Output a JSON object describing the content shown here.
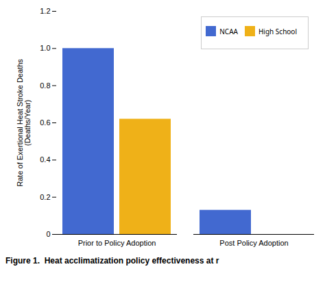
{
  "chart_data": {
    "type": "bar",
    "categories": [
      "Prior to Policy Adoption",
      "Post Policy Adoption"
    ],
    "series": [
      {
        "name": "NCAA",
        "values": [
          1.0,
          0.13
        ]
      },
      {
        "name": "High School",
        "values": [
          0.62,
          0.0
        ]
      }
    ],
    "ylabel": "Rate of Exertional Heat Stroke Deaths\n(Deaths/Year)",
    "caption": "Figure 1.  Heat acclimatization policy effectiveness at r",
    "ylim": [
      0,
      1.2
    ],
    "yticks": [
      0,
      0.2,
      0.4,
      0.6,
      0.8,
      {
        "value": 1.0,
        "label": "1.0"
      },
      1.2
    ],
    "legend": "upper right",
    "grid": false
  }
}
